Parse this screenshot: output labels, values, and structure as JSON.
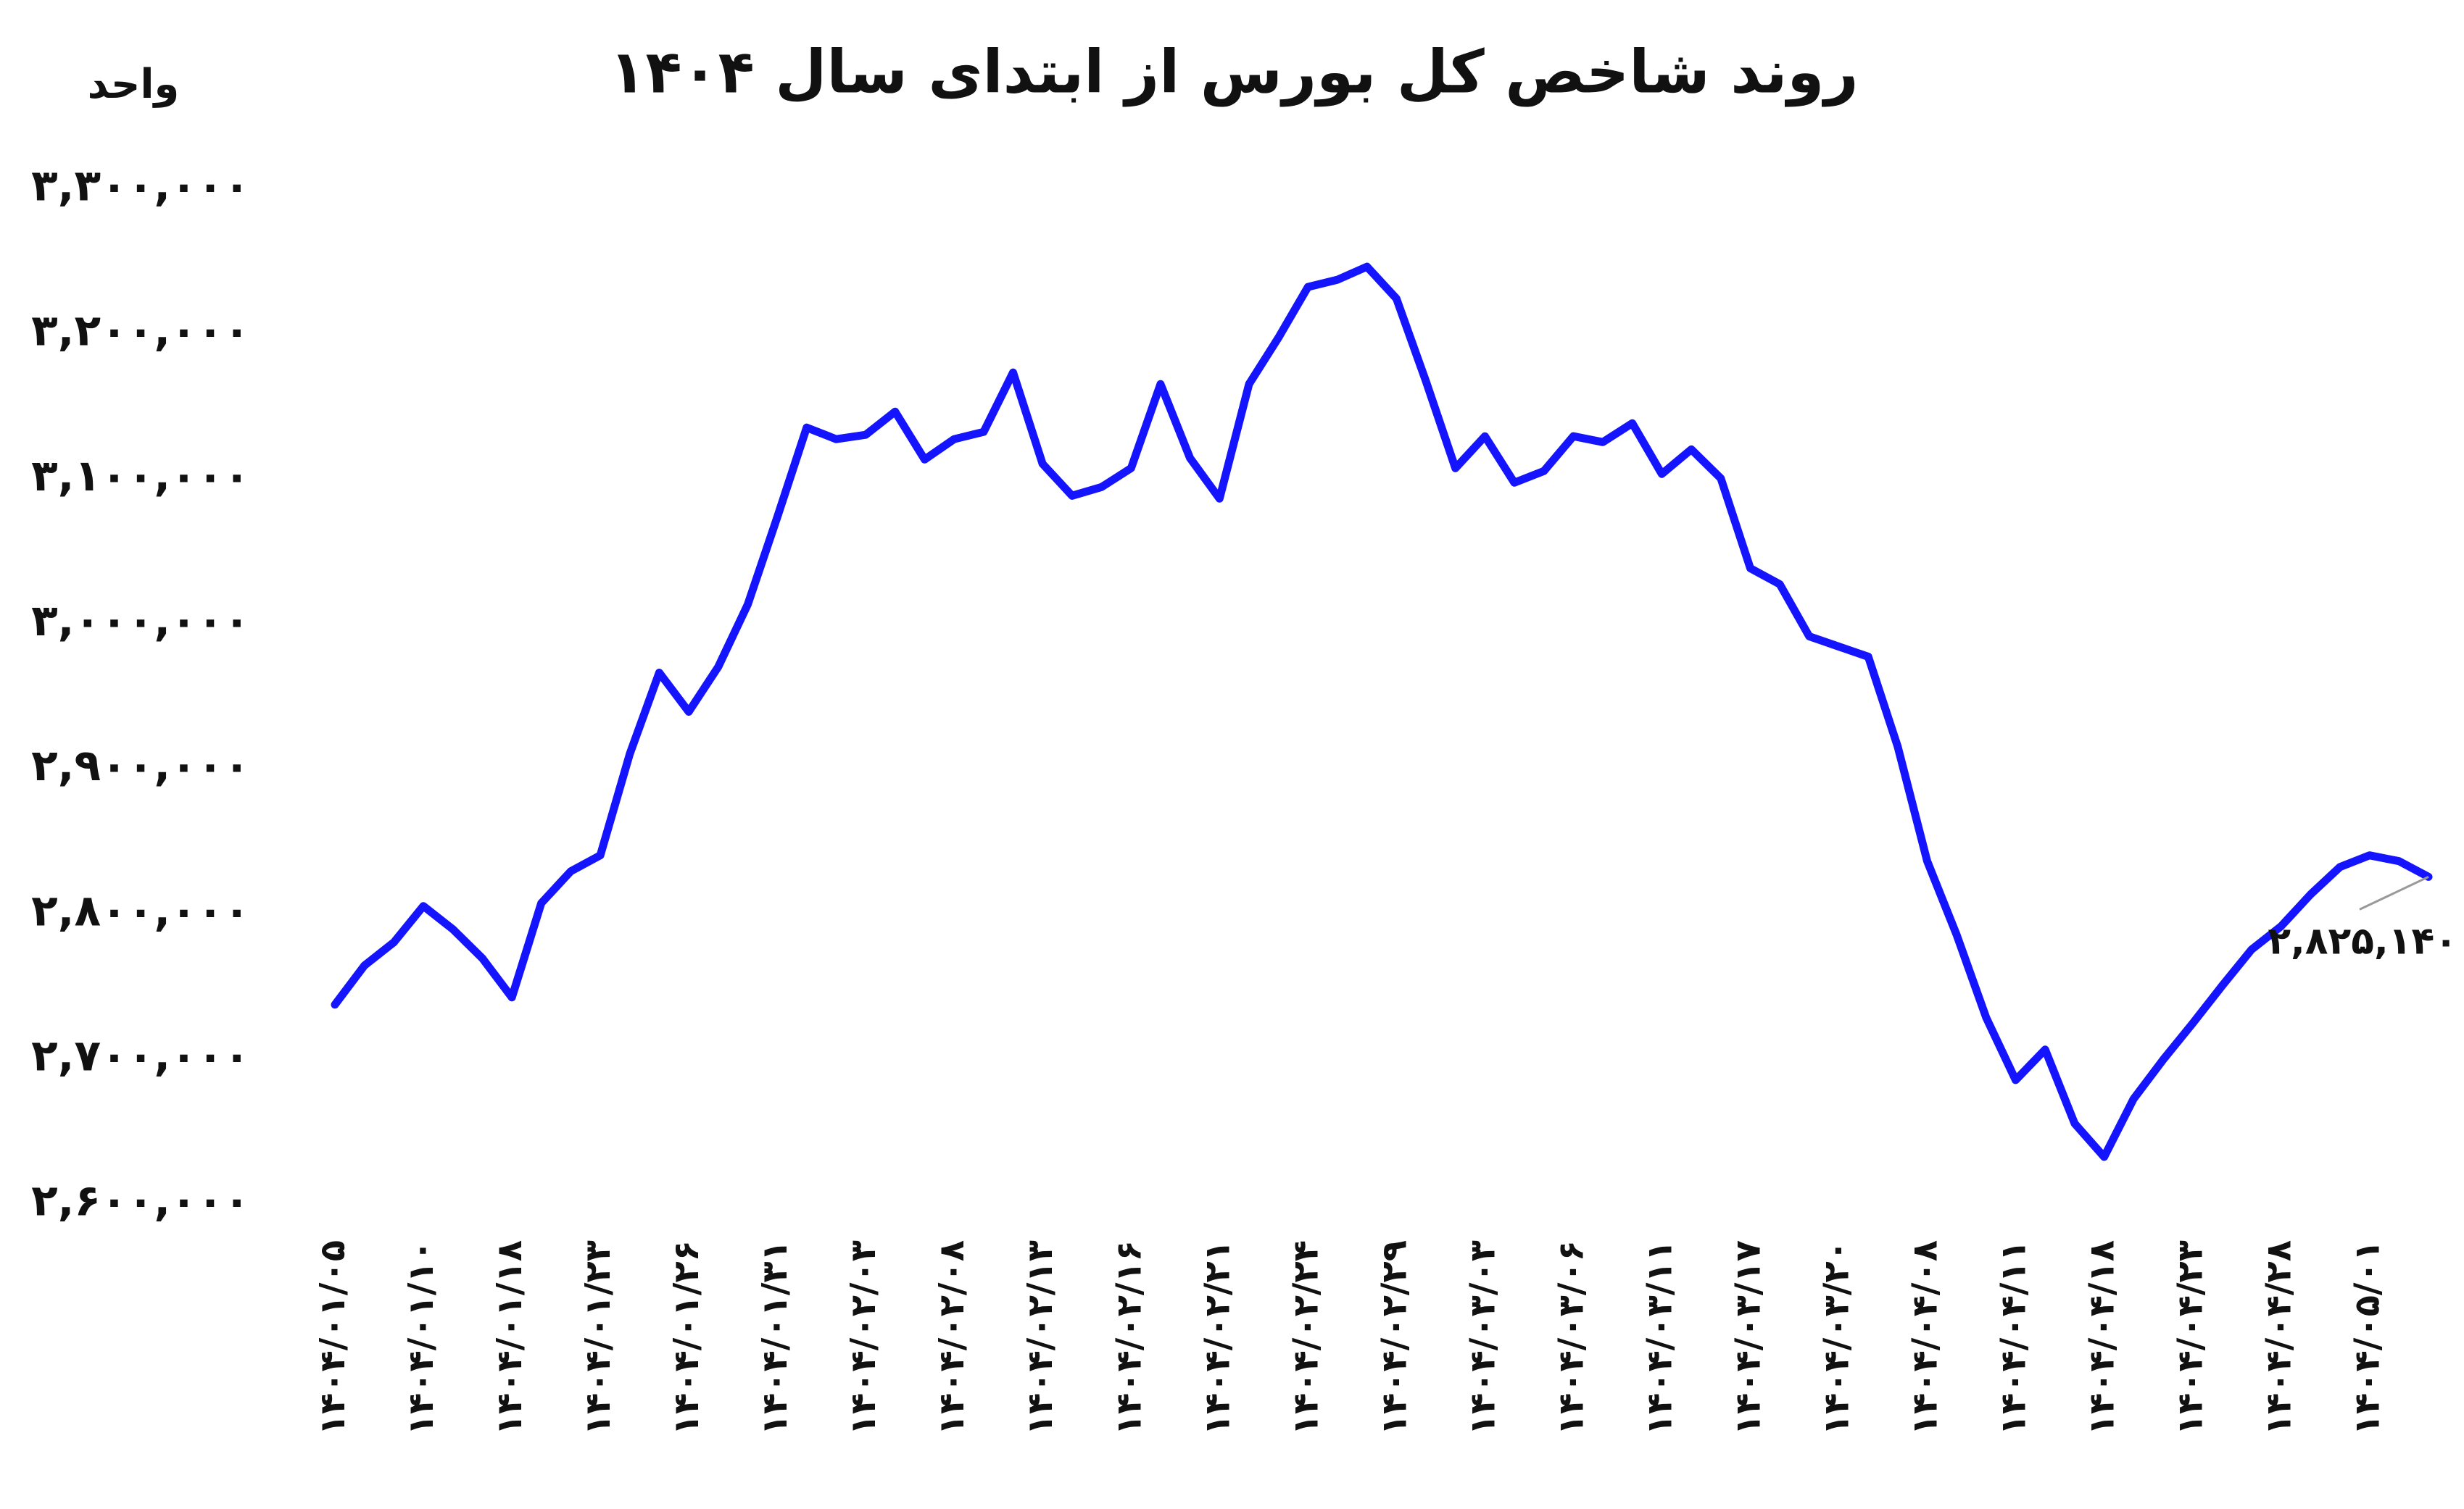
{
  "chart_data": {
    "type": "line",
    "title": "روند شاخص کل بورس از ابتدای سال ۱۴۰۴",
    "y_label": "واحد",
    "color": "#1414ff",
    "categories": [
      "۱۴۰۴/۰۱/۰۵",
      null,
      null,
      "۱۴۰۴/۰۱/۱۰",
      null,
      null,
      "۱۴۰۴/۰۱/۱۸",
      null,
      null,
      "۱۴۰۴/۰۱/۲۳",
      null,
      null,
      "۱۴۰۴/۰۱/۲۶",
      null,
      null,
      "۱۴۰۴/۰۱/۳۱",
      null,
      null,
      "۱۴۰۴/۰۲/۰۳",
      null,
      null,
      "۱۴۰۴/۰۲/۰۸",
      null,
      null,
      "۱۴۰۴/۰۲/۱۳",
      null,
      null,
      "۱۴۰۴/۰۲/۱۶",
      null,
      null,
      "۱۴۰۴/۰۲/۲۱",
      null,
      null,
      "۱۴۰۴/۰۲/۲۴",
      null,
      null,
      "۱۴۰۴/۰۲/۲۹",
      null,
      null,
      "۱۴۰۴/۰۳/۰۳",
      null,
      null,
      "۱۴۰۴/۰۳/۰۶",
      null,
      null,
      "۱۴۰۴/۰۳/۱۱",
      null,
      null,
      "۱۴۰۴/۰۳/۱۷",
      null,
      null,
      "۱۴۰۴/۰۳/۲۰",
      null,
      null,
      "۱۴۰۴/۰۴/۰۸",
      null,
      null,
      "۱۴۰۴/۰۴/۱۱",
      null,
      null,
      "۱۴۰۴/۰۴/۱۸",
      null,
      null,
      "۱۴۰۴/۰۴/۲۳",
      null,
      null,
      "۱۴۰۴/۰۴/۲۸",
      null,
      null,
      "۱۴۰۴/۰۵/۰۱",
      null,
      null
    ],
    "values": [
      2737000,
      2764000,
      2780000,
      2805000,
      2789000,
      2769000,
      2742000,
      2807000,
      2829000,
      2840000,
      2910000,
      2966000,
      2939000,
      2970000,
      3013000,
      3073000,
      3135000,
      3127000,
      3130000,
      3146000,
      3113000,
      3127000,
      3132000,
      3173000,
      3110000,
      3088000,
      3094000,
      3107000,
      3165000,
      3114000,
      3086000,
      3165000,
      3197000,
      3232000,
      3237000,
      3246000,
      3224000,
      3167000,
      3107000,
      3129000,
      3097000,
      3105000,
      3129000,
      3125000,
      3138000,
      3103000,
      3120000,
      3100000,
      3038000,
      3027000,
      2991000,
      2984000,
      2977000,
      2915000,
      2836000,
      2785000,
      2728000,
      2685000,
      2706000,
      2655000,
      2632000,
      2672000,
      2699000,
      2724000,
      2750000,
      2775000,
      2791000,
      2813000,
      2832000,
      2840000,
      2836000,
      2825140
    ],
    "value_labels": [
      null,
      null,
      null,
      null,
      null,
      null,
      null,
      null,
      null,
      null,
      null,
      null,
      null,
      null,
      null,
      null,
      null,
      null,
      null,
      null,
      null,
      null,
      null,
      null,
      null,
      null,
      null,
      null,
      null,
      null,
      null,
      null,
      null,
      null,
      null,
      null,
      null,
      null,
      null,
      null,
      null,
      null,
      null,
      null,
      null,
      null,
      null,
      null,
      null,
      null,
      null,
      null,
      null,
      null,
      null,
      null,
      null,
      null,
      null,
      null,
      null,
      null,
      null,
      null,
      null,
      null,
      null,
      null,
      null,
      null,
      null,
      "۲,۸۲۵,۱۴۰"
    ],
    "ylim": [
      2600000,
      3300000
    ],
    "yticks": [
      {
        "value": 2600000,
        "label": "۲,۶۰۰,۰۰۰"
      },
      {
        "value": 2700000,
        "label": "۲,۷۰۰,۰۰۰"
      },
      {
        "value": 2800000,
        "label": "۲,۸۰۰,۰۰۰"
      },
      {
        "value": 2900000,
        "label": "۲,۹۰۰,۰۰۰"
      },
      {
        "value": 3000000,
        "label": "۳,۰۰۰,۰۰۰"
      },
      {
        "value": 3100000,
        "label": "۳,۱۰۰,۰۰۰"
      },
      {
        "value": 3200000,
        "label": "۳,۲۰۰,۰۰۰"
      },
      {
        "value": 3300000,
        "label": "۳,۳۰۰,۰۰۰"
      }
    ],
    "grid": false
  }
}
